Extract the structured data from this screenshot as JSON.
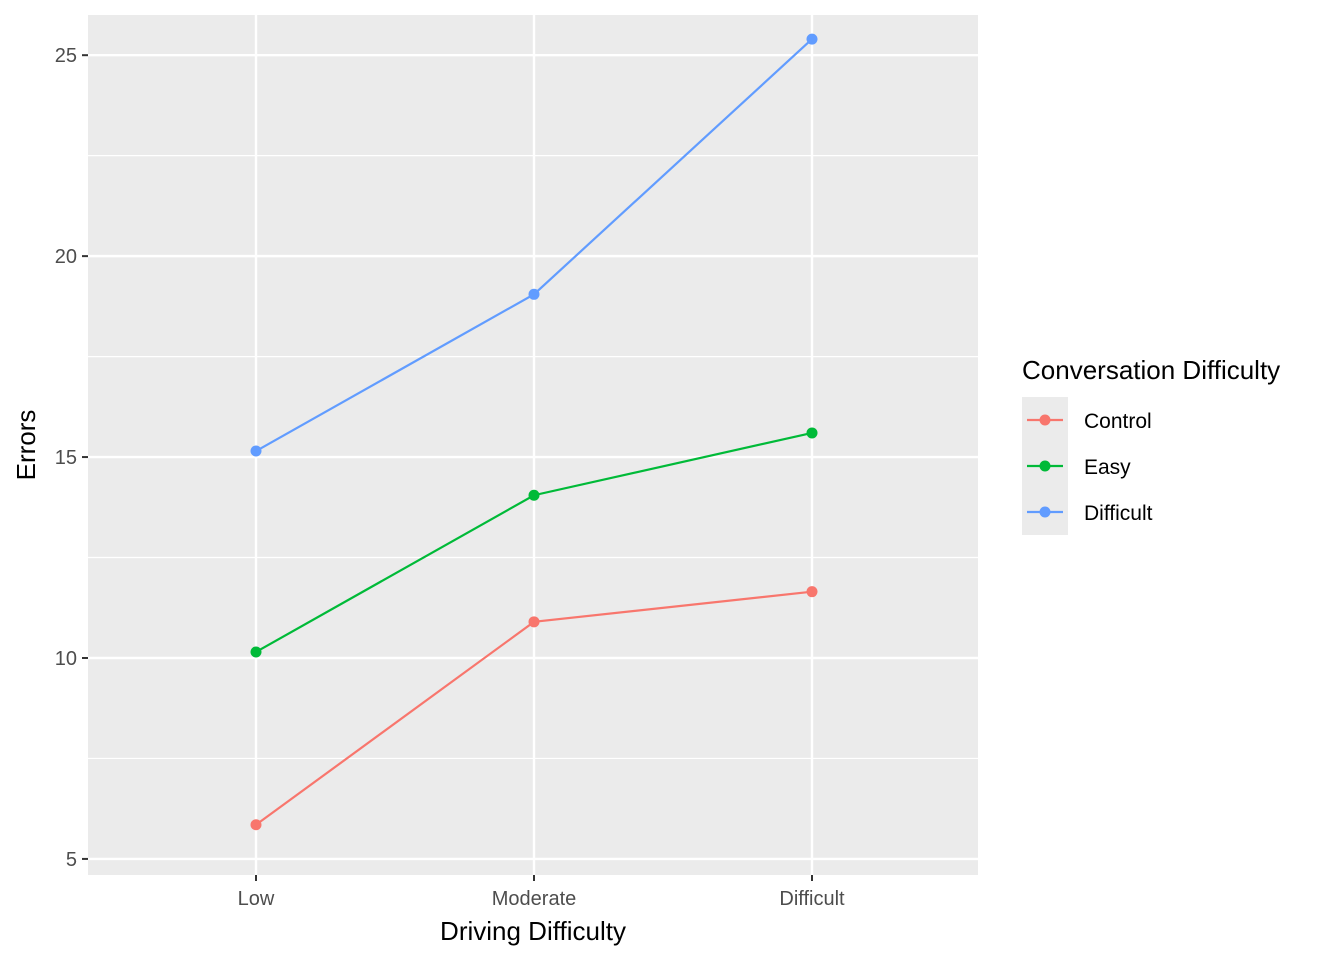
{
  "chart_data": {
    "type": "line",
    "title": "",
    "xlabel": "Driving Difficulty",
    "ylabel": "Errors",
    "categories": [
      "Low",
      "Moderate",
      "Difficult"
    ],
    "ylim": [
      4.6,
      26.0
    ],
    "yticks": [
      5,
      10,
      15,
      20,
      25
    ],
    "grid": true,
    "legend": {
      "title": "Conversation Difficulty",
      "placement": "right"
    },
    "series": [
      {
        "name": "Control",
        "color": "#F8766D",
        "values": [
          5.85,
          10.9,
          11.65
        ]
      },
      {
        "name": "Easy",
        "color": "#00BA38",
        "values": [
          10.15,
          14.05,
          15.6
        ]
      },
      {
        "name": "Difficult",
        "color": "#619CFF",
        "values": [
          15.15,
          19.05,
          25.4
        ]
      }
    ]
  }
}
